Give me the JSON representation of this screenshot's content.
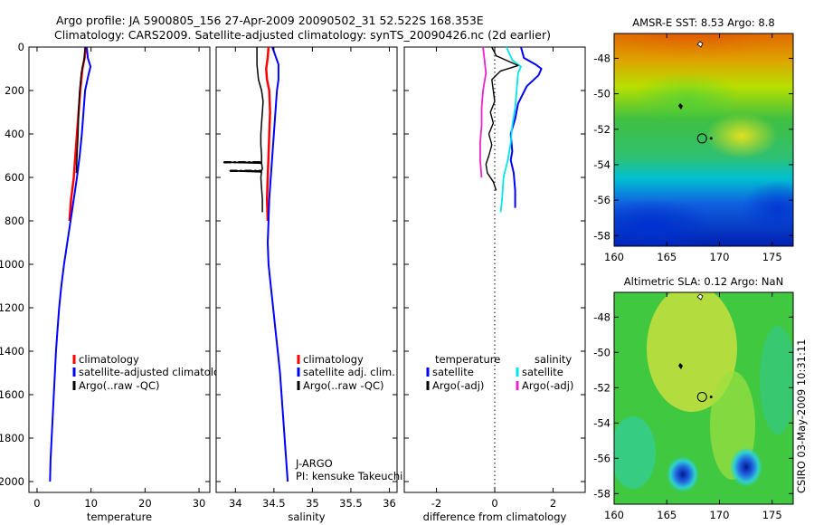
{
  "header": {
    "line1": "Argo profile: JA 5900805_156 27-Apr-2009 20090502_31 52.522S 168.353E",
    "line2": "Climatology: CARS2009. Satellite-adjusted climatology: synTS_20090426.nc (2d earlier)"
  },
  "footer": {
    "credit": "CSIRO 03-May-2009 10:31:11"
  },
  "chart_data": [
    {
      "type": "line",
      "xlabel": "temperature",
      "xlim": [
        -1.5,
        32
      ],
      "ylim": [
        2050,
        0
      ],
      "xticks": [
        0,
        10,
        20,
        30
      ],
      "yticks": [
        0,
        200,
        400,
        600,
        800,
        1000,
        1200,
        1400,
        1600,
        1800,
        2000
      ],
      "legend": [
        {
          "label": "climatology",
          "color": "#ff0000"
        },
        {
          "label": "satellite-adjusted climatology",
          "color": "#0000ff"
        },
        {
          "label": "Argo(..raw -QC)",
          "color": "#000000"
        }
      ],
      "series": [
        {
          "color": "#ff0000",
          "width": 2.5,
          "points": [
            [
              9.0,
              0
            ],
            [
              8.8,
              50
            ],
            [
              8.4,
              100
            ],
            [
              8.0,
              200
            ],
            [
              7.7,
              300
            ],
            [
              7.4,
              400
            ],
            [
              7.1,
              500
            ],
            [
              6.8,
              600
            ],
            [
              6.3,
              700
            ],
            [
              6.0,
              800
            ]
          ]
        },
        {
          "color": "#0000ff",
          "width": 2,
          "points": [
            [
              9.2,
              0
            ],
            [
              9.4,
              50
            ],
            [
              9.9,
              90
            ],
            [
              9.5,
              130
            ],
            [
              8.9,
              200
            ],
            [
              8.6,
              300
            ],
            [
              8.3,
              400
            ],
            [
              7.9,
              500
            ],
            [
              7.4,
              600
            ],
            [
              6.8,
              700
            ],
            [
              6.2,
              800
            ],
            [
              5.6,
              900
            ],
            [
              5.0,
              1000
            ],
            [
              4.5,
              1100
            ],
            [
              4.1,
              1200
            ],
            [
              3.8,
              1300
            ],
            [
              3.5,
              1400
            ],
            [
              3.3,
              1500
            ],
            [
              3.1,
              1600
            ],
            [
              2.9,
              1700
            ],
            [
              2.7,
              1800
            ],
            [
              2.5,
              1900
            ],
            [
              2.4,
              2000
            ]
          ]
        },
        {
          "color": "#000000",
          "width": 1.5,
          "points": [
            [
              8.9,
              0
            ],
            [
              8.7,
              60
            ],
            [
              8.2,
              120
            ],
            [
              7.9,
              200
            ],
            [
              7.7,
              300
            ],
            [
              7.6,
              400
            ],
            [
              7.4,
              500
            ],
            [
              7.3,
              580
            ]
          ]
        }
      ]
    },
    {
      "type": "line",
      "xlabel": "salinity",
      "xlim": [
        33.75,
        36.1
      ],
      "ylim": [
        2050,
        0
      ],
      "xticks": [
        34,
        34.5,
        35,
        35.5,
        36
      ],
      "legend": [
        {
          "label": "climatology",
          "color": "#ff0000"
        },
        {
          "label": "satellite adj. clim.",
          "color": "#0000ff"
        },
        {
          "label": "Argo(..raw -QC)",
          "color": "#000000"
        }
      ],
      "annotation": [
        "J-ARGO",
        "PI: kensuke Takeuchi"
      ],
      "series": [
        {
          "color": "#ff0000",
          "width": 2.5,
          "points": [
            [
              34.43,
              0
            ],
            [
              34.42,
              50
            ],
            [
              34.4,
              100
            ],
            [
              34.41,
              150
            ],
            [
              34.44,
              200
            ],
            [
              34.45,
              300
            ],
            [
              34.44,
              400
            ],
            [
              34.43,
              500
            ],
            [
              34.42,
              600
            ],
            [
              34.41,
              700
            ],
            [
              34.42,
              800
            ]
          ]
        },
        {
          "color": "#0000ff",
          "width": 2,
          "points": [
            [
              34.48,
              0
            ],
            [
              34.52,
              40
            ],
            [
              34.56,
              80
            ],
            [
              34.56,
              150
            ],
            [
              34.54,
              200
            ],
            [
              34.52,
              300
            ],
            [
              34.5,
              400
            ],
            [
              34.48,
              500
            ],
            [
              34.46,
              600
            ],
            [
              34.44,
              700
            ],
            [
              34.43,
              800
            ],
            [
              34.42,
              900
            ],
            [
              34.43,
              1000
            ],
            [
              34.46,
              1100
            ],
            [
              34.49,
              1200
            ],
            [
              34.52,
              1300
            ],
            [
              34.55,
              1400
            ],
            [
              34.58,
              1500
            ],
            [
              34.6,
              1600
            ],
            [
              34.62,
              1700
            ],
            [
              34.64,
              1800
            ],
            [
              34.66,
              1900
            ],
            [
              34.68,
              2000
            ]
          ]
        },
        {
          "color": "#000000",
          "width": 1.5,
          "points": [
            [
              34.28,
              0
            ],
            [
              34.28,
              80
            ],
            [
              34.3,
              150
            ],
            [
              34.34,
              200
            ],
            [
              34.36,
              250
            ],
            [
              34.35,
              300
            ],
            [
              34.34,
              350
            ],
            [
              34.33,
              400
            ],
            [
              34.33,
              450
            ],
            [
              34.34,
              500
            ],
            [
              34.34,
              530
            ],
            [
              33.85,
              530
            ],
            [
              34.34,
              535
            ],
            [
              34.35,
              560
            ],
            [
              34.34,
              570
            ],
            [
              33.93,
              570
            ],
            [
              34.34,
              575
            ],
            [
              34.33,
              600
            ],
            [
              34.34,
              650
            ],
            [
              34.35,
              700
            ],
            [
              34.35,
              760
            ]
          ]
        }
      ]
    },
    {
      "type": "line",
      "xlabel": "difference from climatology",
      "xlim": [
        -3.1,
        3.1
      ],
      "ylim": [
        2050,
        0
      ],
      "xticks": [
        -2,
        0,
        2
      ],
      "legend": [
        {
          "label": "temperature",
          "color": ""
        },
        {
          "label": "satellite",
          "color": "#0000ff"
        },
        {
          "label": "Argo(-adj)",
          "color": "#000000"
        },
        {
          "label": "salinity",
          "color": ""
        },
        {
          "label": "satellite",
          "color": "#00e5ee"
        },
        {
          "label": "Argo(-adj)",
          "color": "#ee22cc"
        }
      ],
      "series": [
        {
          "color": "#0000ff",
          "width": 2,
          "points": [
            [
              0.9,
              0
            ],
            [
              1.0,
              50
            ],
            [
              1.4,
              80
            ],
            [
              1.6,
              100
            ],
            [
              1.5,
              130
            ],
            [
              1.1,
              180
            ],
            [
              0.8,
              260
            ],
            [
              0.7,
              330
            ],
            [
              0.55,
              400
            ],
            [
              0.6,
              480
            ],
            [
              0.55,
              520
            ],
            [
              0.65,
              580
            ],
            [
              0.7,
              660
            ],
            [
              0.7,
              740
            ]
          ]
        },
        {
          "color": "#00e5ee",
          "width": 1.8,
          "points": [
            [
              0.4,
              0
            ],
            [
              0.6,
              60
            ],
            [
              0.9,
              90
            ],
            [
              0.8,
              120
            ],
            [
              0.75,
              200
            ],
            [
              0.7,
              280
            ],
            [
              0.6,
              360
            ],
            [
              0.55,
              440
            ],
            [
              0.45,
              520
            ],
            [
              0.3,
              600
            ],
            [
              0.25,
              700
            ],
            [
              0.2,
              760
            ]
          ]
        },
        {
          "color": "#ee22cc",
          "width": 1.8,
          "points": [
            [
              -0.4,
              0
            ],
            [
              -0.35,
              60
            ],
            [
              -0.3,
              120
            ],
            [
              -0.4,
              200
            ],
            [
              -0.45,
              280
            ],
            [
              -0.45,
              360
            ],
            [
              -0.5,
              440
            ],
            [
              -0.5,
              520
            ],
            [
              -0.45,
              600
            ]
          ]
        },
        {
          "color": "#000000",
          "width": 1.4,
          "points": [
            [
              -0.1,
              0
            ],
            [
              0.05,
              40
            ],
            [
              0.8,
              85
            ],
            [
              0.2,
              110
            ],
            [
              -0.1,
              150
            ],
            [
              -0.05,
              200
            ],
            [
              0.0,
              250
            ],
            [
              -0.15,
              300
            ],
            [
              -0.05,
              350
            ],
            [
              -0.2,
              400
            ],
            [
              -0.1,
              450
            ],
            [
              -0.2,
              500
            ],
            [
              -0.3,
              540
            ],
            [
              -0.25,
              580
            ],
            [
              -0.05,
              620
            ],
            [
              0.05,
              660
            ]
          ]
        }
      ]
    },
    {
      "type": "heatmap",
      "title": "AMSR-E SST: 8.53 Argo: 8.8",
      "xlim": [
        160,
        177
      ],
      "ylim": [
        -58.6,
        -46.6
      ],
      "xticks": [
        160,
        165,
        170,
        175
      ],
      "yticks": [
        -48,
        -50,
        -52,
        -54,
        -56,
        -58
      ],
      "profile_marker": [
        168.35,
        -52.52
      ]
    },
    {
      "type": "heatmap",
      "title": "Altimetric SLA: 0.12 Argo: NaN",
      "xlim": [
        160,
        177
      ],
      "ylim": [
        -58.6,
        -46.6
      ],
      "xticks": [
        160,
        165,
        170,
        175
      ],
      "yticks": [
        -48,
        -50,
        -52,
        -54,
        -56,
        -58
      ],
      "profile_marker": [
        168.35,
        -52.52
      ]
    }
  ]
}
